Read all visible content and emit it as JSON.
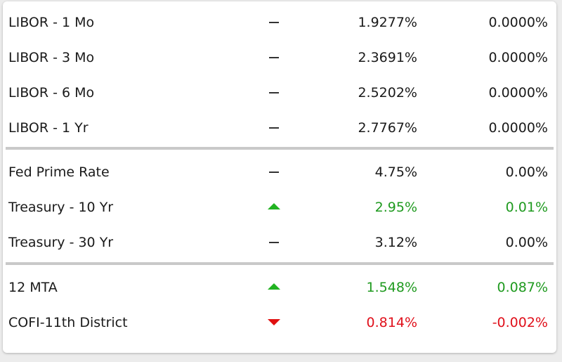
{
  "colors": {
    "up": "#21b321",
    "down": "#e01010",
    "positive_text": "#1f9a1f",
    "negative_text": "#e0101b",
    "divider": "#c9c9c9"
  },
  "rows": [
    {
      "name": "LIBOR - 1 Mo",
      "trend": "flat",
      "trend_icon": "dash-icon",
      "rate": "1.9277%",
      "change": "0.0000%"
    },
    {
      "name": "LIBOR - 3 Mo",
      "trend": "flat",
      "trend_icon": "dash-icon",
      "rate": "2.3691%",
      "change": "0.0000%"
    },
    {
      "name": "LIBOR - 6 Mo",
      "trend": "flat",
      "trend_icon": "dash-icon",
      "rate": "2.5202%",
      "change": "0.0000%"
    },
    {
      "name": "LIBOR - 1 Yr",
      "trend": "flat",
      "trend_icon": "dash-icon",
      "rate": "2.7767%",
      "change": "0.0000%"
    },
    {
      "name": "Fed Prime Rate",
      "trend": "flat",
      "trend_icon": "dash-icon",
      "rate": "4.75%",
      "change": "0.00%"
    },
    {
      "name": "Treasury - 10 Yr",
      "trend": "up",
      "trend_icon": "triangle-up-icon",
      "rate": "2.95%",
      "change": "0.01%"
    },
    {
      "name": "Treasury - 30 Yr",
      "trend": "flat",
      "trend_icon": "dash-icon",
      "rate": "3.12%",
      "change": "0.00%"
    },
    {
      "name": "12 MTA",
      "trend": "up",
      "trend_icon": "triangle-up-icon",
      "rate": "1.548%",
      "change": "0.087%"
    },
    {
      "name": "COFI-11th District",
      "trend": "down",
      "trend_icon": "triangle-down-icon",
      "rate": "0.814%",
      "change": "-0.002%"
    }
  ]
}
